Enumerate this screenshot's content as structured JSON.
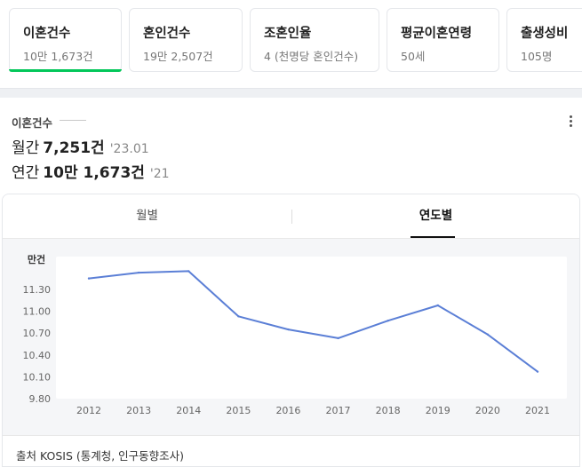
{
  "cards": [
    {
      "title": "이혼건수",
      "sub": "10만 1,673건",
      "active": true
    },
    {
      "title": "혼인건수",
      "sub": "19만 2,507건",
      "active": false
    },
    {
      "title": "조혼인율",
      "sub": "4 (천명당 혼인건수)",
      "active": false
    },
    {
      "title": "평균이혼연령",
      "sub": "50세",
      "active": false
    },
    {
      "title": "출생성비",
      "sub": "105명",
      "active": false
    }
  ],
  "panel": {
    "kicker": "이혼건수",
    "monthly": {
      "label": "월간",
      "value": "7,251건",
      "date": "'23.01"
    },
    "yearly": {
      "label": "연간",
      "value": "10만 1,673건",
      "date": "'21"
    },
    "tabs": [
      "월별",
      "연도별"
    ],
    "active_tab": "연도별",
    "source": "출처 KOSIS (통계청, 인구동향조사)"
  },
  "colors": {
    "accent": "#03c75a",
    "line": "#5b7fd6"
  },
  "chart_data": {
    "type": "line",
    "ylabel": "만건",
    "x": [
      "2012",
      "2013",
      "2014",
      "2015",
      "2016",
      "2017",
      "2018",
      "2019",
      "2020",
      "2021"
    ],
    "series": [
      {
        "values": [
          11.45,
          11.53,
          11.55,
          10.93,
          10.75,
          10.63,
          10.87,
          11.08,
          10.68,
          10.17
        ]
      }
    ],
    "yticks": [
      "11.30",
      "11.00",
      "10.70",
      "10.40",
      "10.10",
      "9.80"
    ],
    "ylim": [
      9.8,
      11.75
    ],
    "grid": false
  }
}
